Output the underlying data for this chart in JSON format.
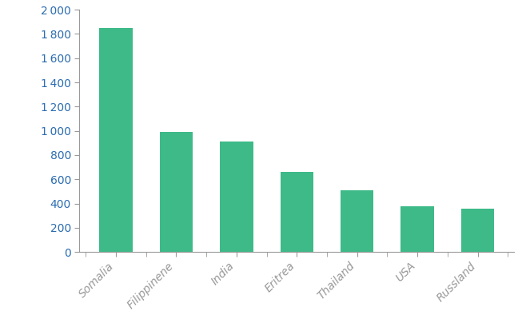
{
  "categories": [
    "Somalia",
    "Filippinene",
    "India",
    "Eritrea",
    "Thailand",
    "USA",
    "Russland"
  ],
  "values": [
    1850,
    990,
    910,
    660,
    510,
    380,
    360
  ],
  "bar_color": "#3dba88",
  "ytick_color": "#2b6cb0",
  "ylim": [
    0,
    2000
  ],
  "yticks": [
    0,
    200,
    400,
    600,
    800,
    1000,
    1200,
    1400,
    1600,
    1800,
    2000
  ],
  "background_color": "#ffffff",
  "bar_width": 0.55,
  "axis_color": "#999999"
}
